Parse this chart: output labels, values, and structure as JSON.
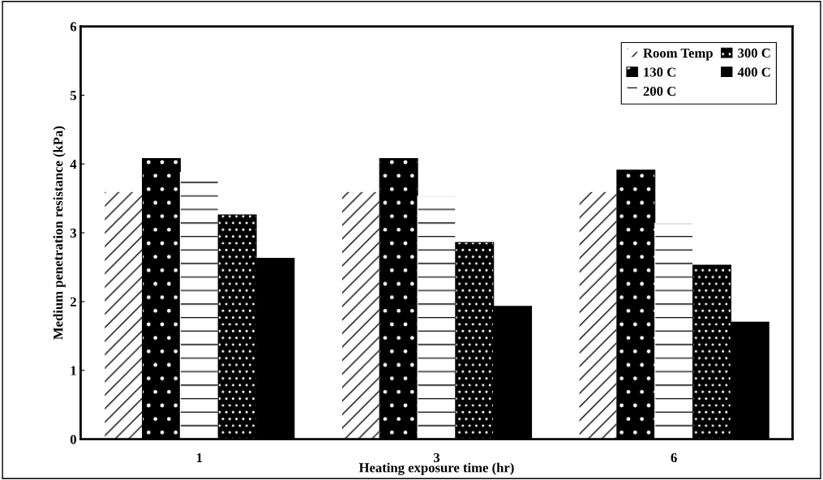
{
  "chart_data": {
    "type": "bar",
    "xlabel": "Heating exposure time (hr)",
    "ylabel": "Medium penetration resistance (kPa)",
    "categories": [
      "1",
      "3",
      "6"
    ],
    "series": [
      {
        "name": "Room Temp",
        "color": "#ffffff",
        "values": [
          3.6,
          3.6,
          3.6
        ]
      },
      {
        "name": "130 C",
        "color": "#000000",
        "values": [
          4.08,
          4.08,
          3.91
        ]
      },
      {
        "name": "200 C",
        "color": "#ffffff",
        "values": [
          3.88,
          3.53,
          3.14
        ]
      },
      {
        "name": "300 C",
        "color": "#000000",
        "values": [
          3.26,
          2.86,
          2.53
        ]
      },
      {
        "name": "400 C",
        "color": "#000000",
        "values": [
          2.63,
          1.93,
          1.7
        ]
      }
    ],
    "ylim": [
      0,
      6
    ],
    "yticks": [
      0,
      1,
      2,
      3,
      4,
      5,
      6
    ],
    "grid": false,
    "legend": "top right"
  }
}
